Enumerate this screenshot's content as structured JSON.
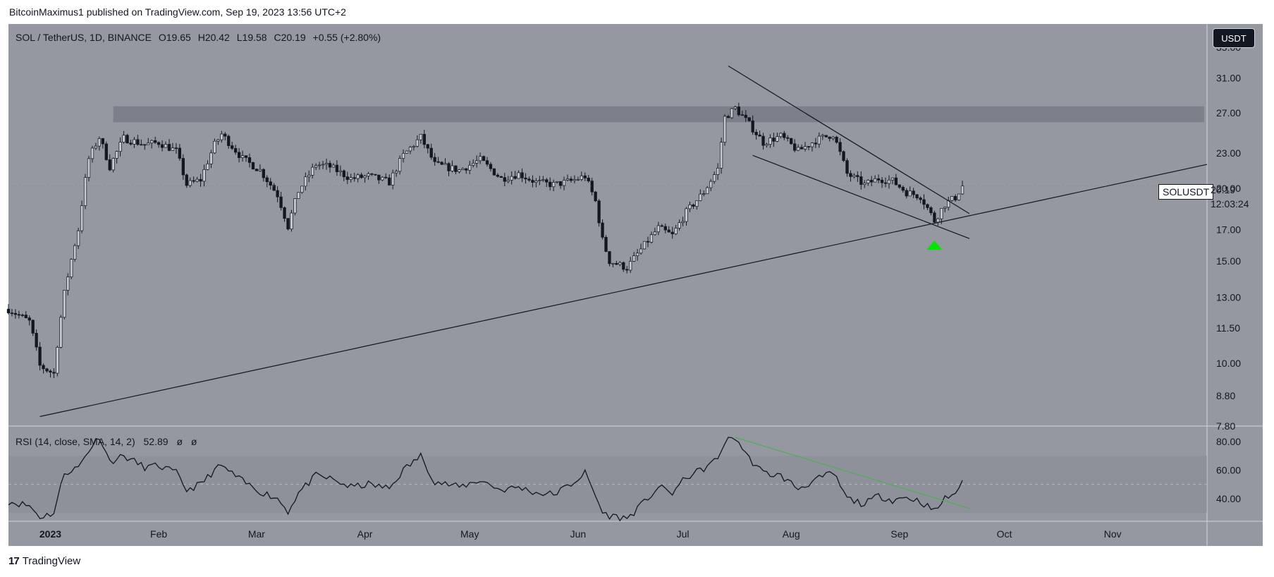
{
  "header": {
    "published_text": "BitcoinMaximus1 published on TradingView.com, Sep 19, 2023 13:56 UTC+2"
  },
  "legend": {
    "symbol": "SOL / TetherUS, 1D, BINANCE",
    "open_label": "O",
    "open": "19.65",
    "high_label": "H",
    "high": "20.42",
    "low_label": "L",
    "low": "19.58",
    "close_label": "C",
    "close": "20.19",
    "change": "+0.55 (+2.80%)"
  },
  "currency_button": {
    "label": "USDT"
  },
  "price_tag": {
    "symbol": "SOLUSDT",
    "value": "20.19",
    "countdown": "12:03:24"
  },
  "rsi_legend": {
    "title": "RSI (14, close, SMA, 14, 2)",
    "value": "52.89",
    "ma1": "ø",
    "ma2": "ø"
  },
  "footer": {
    "brand": "TradingView",
    "logo": "17"
  },
  "colors": {
    "background": "#9598a1",
    "candle": "#131722",
    "trendline": "#131722",
    "resistance_band": "#787b86",
    "rsi_trendline": "#4caf50",
    "arrow": "#00e600"
  },
  "chart_data": [
    {
      "type": "candlestick",
      "symbol": "SOL / TetherUS",
      "interval": "1D",
      "exchange": "BINANCE",
      "yscale": "log",
      "yticks": [
        "35.00",
        "31.00",
        "27.00",
        "23.00",
        "20.00",
        "17.00",
        "15.00",
        "13.00",
        "11.50",
        "10.00",
        "8.80",
        "7.80"
      ],
      "ylim": [
        7.8,
        36.5
      ],
      "xticks": [
        "2023",
        "Feb",
        "Mar",
        "Apr",
        "May",
        "Jun",
        "Jul",
        "Aug",
        "Sep",
        "Oct",
        "Nov"
      ],
      "xlim": [
        "2022-12-20",
        "2023-11-28"
      ],
      "close_path": [
        [
          "2022-12-20",
          12.4
        ],
        [
          "2022-12-26",
          11.8
        ],
        [
          "2022-12-29",
          9.9
        ],
        [
          "2023-01-02",
          9.6
        ],
        [
          "2023-01-05",
          13.2
        ],
        [
          "2023-01-09",
          17.0
        ],
        [
          "2023-01-12",
          22.5
        ],
        [
          "2023-01-15",
          24.5
        ],
        [
          "2023-01-18",
          21.8
        ],
        [
          "2023-01-22",
          24.4
        ],
        [
          "2023-01-28",
          23.8
        ],
        [
          "2023-02-01",
          24.0
        ],
        [
          "2023-02-06",
          23.2
        ],
        [
          "2023-02-09",
          20.3
        ],
        [
          "2023-02-13",
          20.7
        ],
        [
          "2023-02-17",
          23.8
        ],
        [
          "2023-02-19",
          24.8
        ],
        [
          "2023-02-25",
          22.5
        ],
        [
          "2023-03-02",
          21.5
        ],
        [
          "2023-03-07",
          19.5
        ],
        [
          "2023-03-10",
          17.2
        ],
        [
          "2023-03-13",
          19.8
        ],
        [
          "2023-03-18",
          22.0
        ],
        [
          "2023-03-22",
          21.8
        ],
        [
          "2023-03-28",
          20.8
        ],
        [
          "2023-04-02",
          21.0
        ],
        [
          "2023-04-08",
          20.5
        ],
        [
          "2023-04-12",
          22.8
        ],
        [
          "2023-04-17",
          24.5
        ],
        [
          "2023-04-21",
          22.0
        ],
        [
          "2023-04-28",
          21.5
        ],
        [
          "2023-05-04",
          22.4
        ],
        [
          "2023-05-10",
          20.8
        ],
        [
          "2023-05-15",
          21.2
        ],
        [
          "2023-05-20",
          20.5
        ],
        [
          "2023-05-25",
          20.3
        ],
        [
          "2023-05-30",
          20.6
        ],
        [
          "2023-06-03",
          21.0
        ],
        [
          "2023-06-06",
          19.0
        ],
        [
          "2023-06-08",
          16.3
        ],
        [
          "2023-06-10",
          15.0
        ],
        [
          "2023-06-15",
          14.6
        ],
        [
          "2023-06-19",
          15.7
        ],
        [
          "2023-06-24",
          17.1
        ],
        [
          "2023-06-28",
          16.6
        ],
        [
          "2023-07-02",
          18.2
        ],
        [
          "2023-07-07",
          19.7
        ],
        [
          "2023-07-11",
          21.6
        ],
        [
          "2023-07-13",
          26.5
        ],
        [
          "2023-07-16",
          27.5
        ],
        [
          "2023-07-20",
          25.8
        ],
        [
          "2023-07-24",
          24.0
        ],
        [
          "2023-07-29",
          24.6
        ],
        [
          "2023-08-03",
          23.2
        ],
        [
          "2023-08-08",
          24.2
        ],
        [
          "2023-08-13",
          24.8
        ],
        [
          "2023-08-17",
          21.2
        ],
        [
          "2023-08-22",
          20.3
        ],
        [
          "2023-08-26",
          20.8
        ],
        [
          "2023-08-30",
          20.6
        ],
        [
          "2023-09-03",
          19.7
        ],
        [
          "2023-09-07",
          19.4
        ],
        [
          "2023-09-11",
          17.6
        ],
        [
          "2023-09-14",
          18.8
        ],
        [
          "2023-09-17",
          19.3
        ],
        [
          "2023-09-19",
          20.19
        ]
      ],
      "annotations": {
        "resistance_band": {
          "from": 26.0,
          "to": 27.7,
          "start": "2023-01-19",
          "end": "2023-11-28"
        },
        "ascending_support": [
          [
            "2022-12-29",
            8.1
          ],
          [
            "2023-11-28",
            22.0
          ]
        ],
        "wedge_upper": [
          [
            "2023-07-14",
            32.5
          ],
          [
            "2023-09-21",
            18.1
          ]
        ],
        "wedge_lower": [
          [
            "2023-07-21",
            22.8
          ],
          [
            "2023-09-21",
            16.4
          ]
        ],
        "arrow_up": {
          "date": "2023-09-11",
          "value": 16.4
        }
      },
      "last_price": 20.19
    },
    {
      "type": "line",
      "title": "RSI (14, close, SMA, 14, 2)",
      "yticks": [
        "80.00",
        "60.00",
        "40.00"
      ],
      "ylim": [
        24,
        88
      ],
      "bands": {
        "upper": 70,
        "middle": 50,
        "lower": 30
      },
      "series": [
        {
          "values": [
            [
              "2022-12-20",
              38
            ],
            [
              "2022-12-26",
              35
            ],
            [
              "2022-12-29",
              27
            ],
            [
              "2023-01-02",
              30
            ],
            [
              "2023-01-05",
              58
            ],
            [
              "2023-01-09",
              62
            ],
            [
              "2023-01-12",
              74
            ],
            [
              "2023-01-15",
              84
            ],
            [
              "2023-01-18",
              66
            ],
            [
              "2023-01-22",
              70
            ],
            [
              "2023-01-28",
              62
            ],
            [
              "2023-02-01",
              63
            ],
            [
              "2023-02-06",
              58
            ],
            [
              "2023-02-09",
              46
            ],
            [
              "2023-02-13",
              50
            ],
            [
              "2023-02-17",
              60
            ],
            [
              "2023-02-19",
              63
            ],
            [
              "2023-02-25",
              52
            ],
            [
              "2023-03-02",
              45
            ],
            [
              "2023-03-07",
              40
            ],
            [
              "2023-03-10",
              31
            ],
            [
              "2023-03-13",
              44
            ],
            [
              "2023-03-18",
              56
            ],
            [
              "2023-03-22",
              54
            ],
            [
              "2023-03-28",
              48
            ],
            [
              "2023-04-02",
              50
            ],
            [
              "2023-04-08",
              47
            ],
            [
              "2023-04-12",
              60
            ],
            [
              "2023-04-17",
              70
            ],
            [
              "2023-04-21",
              52
            ],
            [
              "2023-04-28",
              48
            ],
            [
              "2023-05-04",
              53
            ],
            [
              "2023-05-10",
              46
            ],
            [
              "2023-05-15",
              48
            ],
            [
              "2023-05-20",
              44
            ],
            [
              "2023-05-25",
              43
            ],
            [
              "2023-05-30",
              50
            ],
            [
              "2023-06-03",
              58
            ],
            [
              "2023-06-06",
              42
            ],
            [
              "2023-06-08",
              30
            ],
            [
              "2023-06-10",
              28
            ],
            [
              "2023-06-15",
              26
            ],
            [
              "2023-06-19",
              35
            ],
            [
              "2023-06-24",
              48
            ],
            [
              "2023-06-28",
              44
            ],
            [
              "2023-07-02",
              55
            ],
            [
              "2023-07-07",
              61
            ],
            [
              "2023-07-11",
              68
            ],
            [
              "2023-07-13",
              80
            ],
            [
              "2023-07-16",
              83
            ],
            [
              "2023-07-20",
              68
            ],
            [
              "2023-07-24",
              58
            ],
            [
              "2023-07-29",
              56
            ],
            [
              "2023-08-03",
              47
            ],
            [
              "2023-08-08",
              53
            ],
            [
              "2023-08-13",
              58
            ],
            [
              "2023-08-17",
              40
            ],
            [
              "2023-08-22",
              36
            ],
            [
              "2023-08-26",
              42
            ],
            [
              "2023-08-30",
              39
            ],
            [
              "2023-09-03",
              41
            ],
            [
              "2023-09-07",
              38
            ],
            [
              "2023-09-11",
              31
            ],
            [
              "2023-09-14",
              40
            ],
            [
              "2023-09-17",
              44
            ],
            [
              "2023-09-19",
              52.89
            ]
          ]
        }
      ],
      "annotations": {
        "rsi_trendline": [
          [
            "2023-07-16",
            83
          ],
          [
            "2023-09-21",
            33
          ]
        ]
      },
      "last_value": 52.89
    }
  ]
}
